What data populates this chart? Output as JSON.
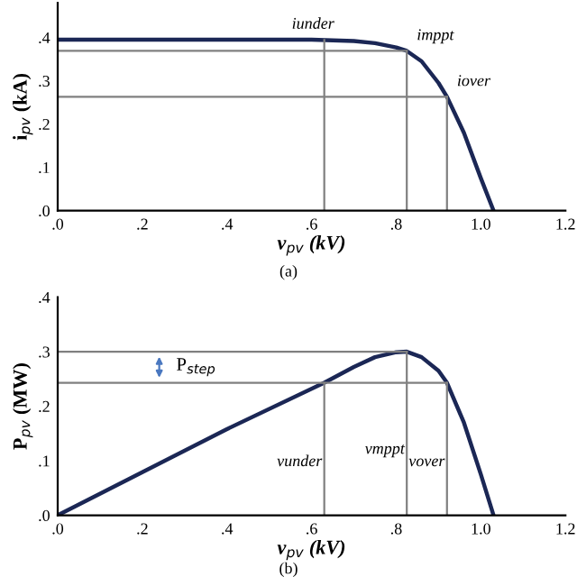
{
  "chart_data": [
    {
      "type": "line",
      "xlabel": "v$_{pv}$ (kV)",
      "ylabel": "i$_{pv}$ (kA)",
      "x": [
        0,
        0.3,
        0.6,
        0.7,
        0.75,
        0.8,
        0.825,
        0.86,
        0.9,
        0.92,
        0.96,
        1.0,
        1.03
      ],
      "series": [
        {
          "color": "#1b2755",
          "values": [
            0.395,
            0.395,
            0.395,
            0.392,
            0.387,
            0.377,
            0.369,
            0.345,
            0.295,
            0.263,
            0.18,
            0.075,
            0
          ]
        }
      ],
      "xlim": [
        0,
        1.2
      ],
      "ylim": [
        0,
        0.48
      ],
      "xticks": [
        {
          "value": 0,
          "label": ".0"
        },
        {
          "value": 0.2,
          "label": ".2"
        },
        {
          "value": 0.4,
          "label": ".4"
        },
        {
          "value": 0.6,
          "label": ".6"
        },
        {
          "value": 0.8,
          "label": ".8"
        },
        {
          "value": 1.0,
          "label": "1.0"
        },
        {
          "value": 1.2,
          "label": "1.2"
        }
      ],
      "yticks": [
        {
          "value": 0,
          "label": ".0"
        },
        {
          "value": 0.1,
          "label": ".1"
        },
        {
          "value": 0.2,
          "label": ".2"
        },
        {
          "value": 0.3,
          "label": ".3"
        },
        {
          "value": 0.4,
          "label": ".4"
        }
      ],
      "ref_lines": [
        {
          "axis": "x",
          "value": 0.63,
          "color": "#808080"
        },
        {
          "axis": "x",
          "value": 0.825,
          "color": "#808080"
        },
        {
          "axis": "x",
          "value": 0.92,
          "color": "#808080"
        },
        {
          "axis": "y",
          "value": 0.369,
          "color": "#808080"
        },
        {
          "axis": "y",
          "value": 0.263,
          "color": "#808080"
        }
      ],
      "annotations": [
        {
          "text": "iunder",
          "x": 0.63,
          "y": 0.395
        },
        {
          "text": "imppt",
          "x": 0.825,
          "y": 0.369
        },
        {
          "text": "iover",
          "x": 0.92,
          "y": 0.263
        },
        "(a)"
      ],
      "grid": false,
      "legend": false,
      "marker": "none",
      "line_style": "solid"
    },
    {
      "type": "line",
      "xlabel": "v$_{pv}$ (kV)",
      "ylabel": "P$_{pv}$ (MW)",
      "x": [
        0,
        0.2,
        0.4,
        0.63,
        0.7,
        0.75,
        0.8,
        0.825,
        0.86,
        0.9,
        0.92,
        0.96,
        1.0,
        1.03
      ],
      "series": [
        {
          "color": "#1b2755",
          "values": [
            0,
            0.079,
            0.158,
            0.243,
            0.272,
            0.29,
            0.299,
            0.3,
            0.29,
            0.265,
            0.243,
            0.17,
            0.075,
            0
          ]
        }
      ],
      "xlim": [
        0,
        1.2
      ],
      "ylim": [
        0,
        0.4
      ],
      "xticks": [
        {
          "value": 0,
          "label": ".0"
        },
        {
          "value": 0.2,
          "label": ".2"
        },
        {
          "value": 0.4,
          "label": ".4"
        },
        {
          "value": 0.6,
          "label": ".6"
        },
        {
          "value": 0.8,
          "label": ".8"
        },
        {
          "value": 1.0,
          "label": "1.0"
        },
        {
          "value": 1.2,
          "label": "1.2"
        }
      ],
      "yticks": [
        {
          "value": 0,
          "label": ".0"
        },
        {
          "value": 0.1,
          "label": ".1"
        },
        {
          "value": 0.2,
          "label": ".2"
        },
        {
          "value": 0.3,
          "label": ".3"
        },
        {
          "value": 0.4,
          "label": ".4"
        }
      ],
      "ref_lines": [
        {
          "axis": "x",
          "value": 0.63,
          "label": "vunder",
          "color": "#808080"
        },
        {
          "axis": "x",
          "value": 0.825,
          "label": "vmppt",
          "color": "#808080"
        },
        {
          "axis": "x",
          "value": 0.92,
          "label": "vover",
          "color": "#808080"
        },
        {
          "axis": "y",
          "value": 0.3,
          "color": "#808080"
        },
        {
          "axis": "y",
          "value": 0.243,
          "color": "#808080"
        }
      ],
      "annotations": [
        "P$_{step}$",
        "(b)"
      ],
      "grid": false,
      "legend": false,
      "marker": "none",
      "line_style": "solid"
    }
  ]
}
